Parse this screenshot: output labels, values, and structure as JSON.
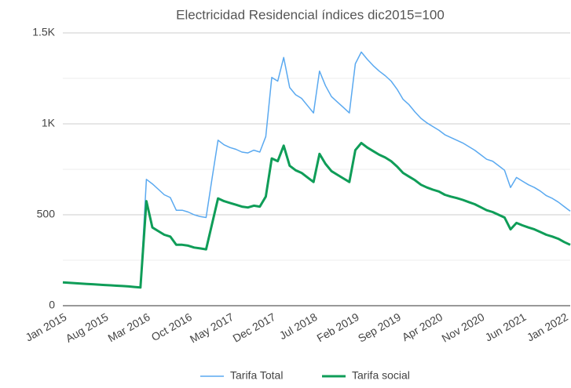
{
  "chart_data": {
    "type": "line",
    "title": "Electricidad Residencial  índices dic2015=100",
    "categories": [
      "Jan 2015",
      null,
      null,
      null,
      null,
      null,
      null,
      "Aug 2015",
      null,
      null,
      null,
      null,
      null,
      null,
      "Mar 2016",
      null,
      null,
      null,
      null,
      null,
      null,
      "Oct 2016",
      null,
      null,
      null,
      null,
      null,
      null,
      "May 2017",
      null,
      null,
      null,
      null,
      null,
      null,
      "Dec 2017",
      null,
      null,
      null,
      null,
      null,
      null,
      "Jul 2018",
      null,
      null,
      null,
      null,
      null,
      null,
      "Feb 2019",
      null,
      null,
      null,
      null,
      null,
      null,
      "Sep 2019",
      null,
      null,
      null,
      null,
      null,
      null,
      "Apr 2020",
      null,
      null,
      null,
      null,
      null,
      null,
      "Nov 2020",
      null,
      null,
      null,
      null,
      null,
      null,
      "Jun 2021",
      null,
      null,
      null,
      null,
      null,
      null,
      "Jan 2022",
      null
    ],
    "series": [
      {
        "name": "Tarifa Total",
        "color": "#5aa9f0",
        "values": [
          128,
          126,
          124,
          122,
          120,
          118,
          116,
          114,
          112,
          110,
          108,
          106,
          103,
          100,
          695,
          670,
          640,
          610,
          595,
          525,
          525,
          515,
          500,
          490,
          485,
          700,
          910,
          885,
          870,
          860,
          845,
          840,
          855,
          845,
          930,
          1255,
          1235,
          1365,
          1200,
          1160,
          1140,
          1100,
          1060,
          1290,
          1210,
          1150,
          1120,
          1090,
          1060,
          1330,
          1395,
          1355,
          1320,
          1290,
          1265,
          1235,
          1190,
          1135,
          1105,
          1065,
          1030,
          1005,
          985,
          965,
          940,
          925,
          910,
          895,
          875,
          855,
          830,
          805,
          795,
          770,
          745,
          650,
          705,
          685,
          665,
          650,
          630,
          605,
          590,
          570,
          545,
          520
        ]
      },
      {
        "name": "Tarifa social",
        "color": "#0f9d58",
        "values": [
          128,
          126,
          124,
          122,
          120,
          118,
          116,
          114,
          112,
          110,
          108,
          106,
          103,
          100,
          575,
          430,
          410,
          390,
          380,
          335,
          335,
          330,
          320,
          315,
          310,
          450,
          590,
          575,
          565,
          555,
          545,
          540,
          550,
          545,
          600,
          810,
          795,
          880,
          770,
          745,
          730,
          705,
          680,
          835,
          780,
          740,
          720,
          700,
          680,
          855,
          895,
          870,
          850,
          830,
          815,
          795,
          765,
          730,
          710,
          690,
          665,
          650,
          638,
          628,
          610,
          600,
          592,
          582,
          570,
          558,
          542,
          525,
          515,
          500,
          485,
          420,
          455,
          442,
          430,
          420,
          405,
          390,
          380,
          368,
          350,
          335
        ]
      }
    ],
    "ylim": [
      0,
      1500
    ],
    "yticks": [
      0,
      500,
      {
        "value": 1000,
        "label": "1K"
      },
      {
        "value": 1500,
        "label": "1.5K"
      }
    ],
    "minor_yticks": [
      250,
      750,
      1250
    ],
    "grid": true,
    "legend": "bottom"
  }
}
